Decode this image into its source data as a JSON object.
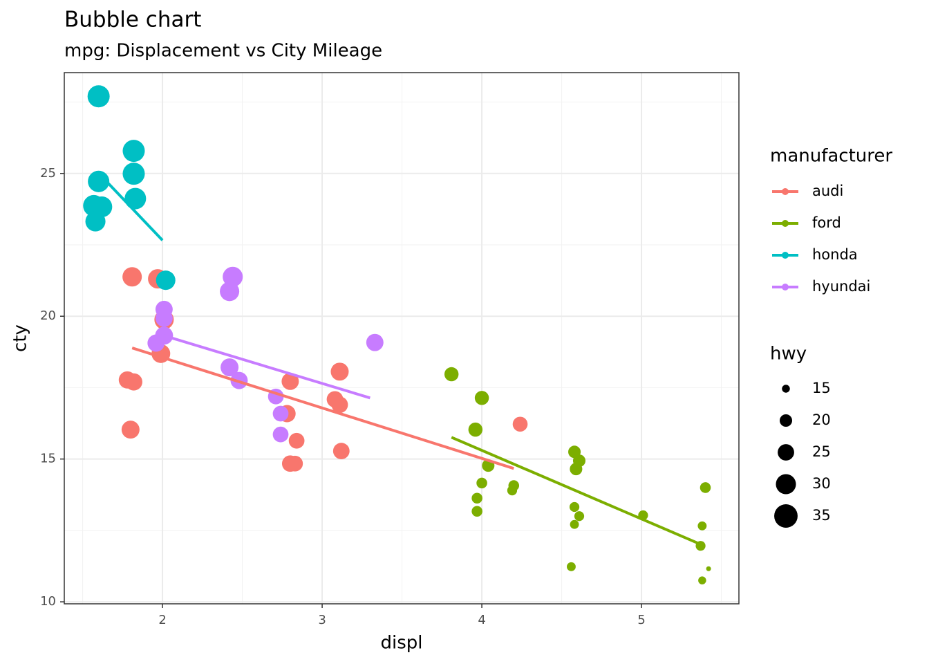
{
  "chart_data": {
    "type": "scatter",
    "title": "Bubble chart",
    "subtitle": "mpg: Displacement vs City Mileage",
    "x_label": "displ",
    "y_label": "cty",
    "xlim": [
      1.385,
      5.61
    ],
    "ylim": [
      9.93,
      28.53
    ],
    "xticks": [
      2,
      3,
      4,
      5
    ],
    "yticks": [
      10,
      15,
      20,
      25
    ],
    "grid": true,
    "legend_title": "manufacturer",
    "size_legend": {
      "title": "hwy",
      "values": [
        15,
        20,
        25,
        30,
        35
      ]
    },
    "series": [
      {
        "name": "audi",
        "color": "#F8766D",
        "x": [
          1.81,
          1.97,
          2.01,
          1.99,
          1.78,
          1.82,
          1.8,
          2.8,
          2.78,
          2.84,
          2.8,
          2.83,
          3.11,
          3.08,
          3.11,
          3.12,
          4.24
        ],
        "values": [
          21.38,
          21.31,
          19.88,
          18.69,
          17.77,
          17.7,
          16.03,
          17.72,
          16.59,
          15.64,
          14.84,
          14.84,
          18.06,
          17.09,
          16.9,
          15.28,
          16.22
        ],
        "sizes": [
          29,
          29,
          29,
          28,
          26,
          26,
          27,
          26,
          26,
          24,
          25,
          24,
          27,
          25,
          25,
          25,
          23
        ],
        "trend": {
          "x": [
            1.81,
            4.2
          ],
          "values": [
            18.89,
            14.67
          ]
        }
      },
      {
        "name": "ford",
        "color": "#7CAE00",
        "x": [
          3.81,
          4.0,
          3.96,
          4.04,
          4.0,
          3.97,
          3.97,
          4.2,
          4.19,
          4.58,
          4.61,
          4.59,
          4.58,
          4.61,
          4.58,
          4.56,
          5.01,
          5.4,
          5.38,
          5.37,
          5.38,
          5.42
        ],
        "values": [
          17.97,
          17.14,
          16.03,
          14.77,
          14.16,
          13.63,
          13.17,
          14.07,
          13.9,
          15.25,
          14.94,
          14.65,
          13.32,
          13.0,
          12.71,
          11.23,
          13.03,
          14.0,
          12.66,
          11.96,
          10.75,
          11.16
        ],
        "sizes": [
          22,
          22,
          22,
          20,
          18,
          18,
          18,
          18,
          17,
          20,
          20,
          20,
          17,
          17,
          16,
          16,
          17,
          18,
          16,
          17,
          15,
          12
        ],
        "trend": {
          "x": [
            3.81,
            5.38
          ],
          "values": [
            15.76,
            11.99
          ]
        }
      },
      {
        "name": "honda",
        "color": "#00BFC4",
        "x": [
          1.6,
          1.6,
          1.82,
          1.82,
          1.83,
          1.57,
          1.62,
          1.58,
          2.02
        ],
        "values": [
          27.7,
          24.72,
          25.79,
          24.99,
          24.12,
          23.87,
          23.83,
          23.32,
          21.26
        ],
        "sizes": [
          33,
          32,
          33,
          33,
          32,
          32,
          31,
          30,
          29
        ],
        "trend": {
          "x": [
            1.6,
            2.0
          ],
          "values": [
            25.01,
            22.66
          ]
        }
      },
      {
        "name": "hyundai",
        "color": "#C77CFF",
        "x": [
          2.44,
          2.42,
          2.01,
          2.01,
          2.01,
          1.96,
          2.42,
          2.48,
          2.71,
          2.74,
          2.74,
          3.33
        ],
        "values": [
          21.38,
          20.87,
          20.24,
          19.93,
          19.32,
          19.06,
          18.21,
          17.75,
          17.19,
          16.59,
          15.86,
          19.08
        ],
        "sizes": [
          30,
          29,
          26,
          26,
          27,
          26,
          27,
          26,
          24,
          24,
          24,
          26
        ],
        "trend": {
          "x": [
            2.01,
            3.3
          ],
          "values": [
            19.32,
            17.14
          ]
        }
      }
    ]
  }
}
